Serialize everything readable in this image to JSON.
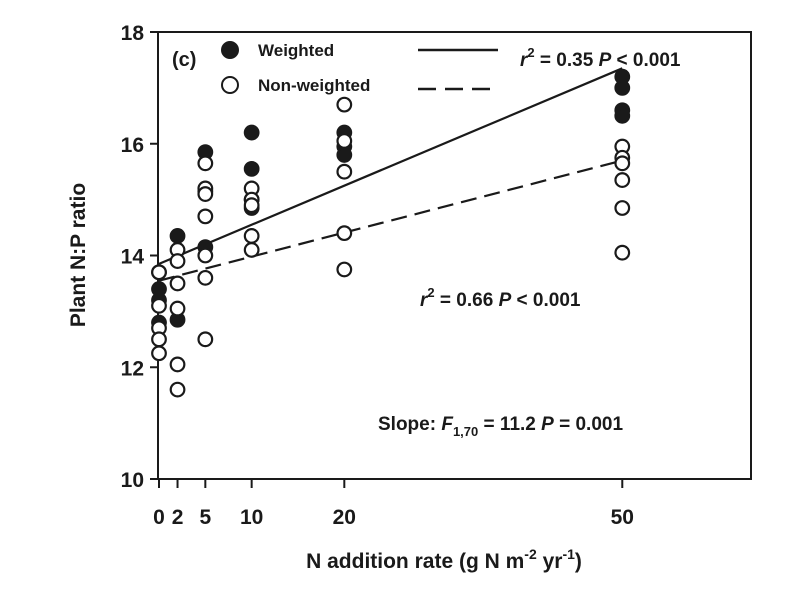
{
  "chart_data": {
    "type": "scatter",
    "panel_label": "(c)",
    "xlabel": "N addition rate (g N m-2 yr-1)",
    "ylabel": "Plant N:P ratio",
    "xlim": [
      0,
      64
    ],
    "ylim": [
      10,
      18
    ],
    "x_ticks": [
      0,
      2,
      5,
      10,
      20,
      50
    ],
    "y_ticks": [
      10,
      12,
      14,
      16,
      18
    ],
    "grid": false,
    "legend_position": "top-left",
    "series": [
      {
        "name": "Weighted",
        "marker": "filled-circle",
        "line_style": "solid",
        "points": [
          [
            0,
            13.7
          ],
          [
            0,
            13.4
          ],
          [
            0,
            13.2
          ],
          [
            0,
            12.8
          ],
          [
            2,
            14.35
          ],
          [
            2,
            12.85
          ],
          [
            5,
            15.85
          ],
          [
            5,
            15.15
          ],
          [
            5,
            14.15
          ],
          [
            10,
            16.2
          ],
          [
            10,
            15.55
          ],
          [
            10,
            15.0
          ],
          [
            10,
            14.85
          ],
          [
            20,
            16.2
          ],
          [
            20,
            15.95
          ],
          [
            20,
            15.8
          ],
          [
            50,
            17.2
          ],
          [
            50,
            17.0
          ],
          [
            50,
            16.6
          ],
          [
            50,
            16.5
          ]
        ],
        "fit": {
          "x": [
            0,
            50
          ],
          "y": [
            13.85,
            17.35
          ]
        },
        "annotation": "r2 = 0.35 P < 0.001"
      },
      {
        "name": "Non-weighted",
        "marker": "open-circle",
        "line_style": "dashed",
        "points": [
          [
            0,
            13.7
          ],
          [
            0,
            13.1
          ],
          [
            0,
            12.7
          ],
          [
            0,
            12.5
          ],
          [
            0,
            12.25
          ],
          [
            2,
            14.1
          ],
          [
            2,
            13.9
          ],
          [
            2,
            13.5
          ],
          [
            2,
            13.05
          ],
          [
            2,
            12.05
          ],
          [
            2,
            11.6
          ],
          [
            5,
            15.65
          ],
          [
            5,
            15.2
          ],
          [
            5,
            15.1
          ],
          [
            5,
            14.7
          ],
          [
            5,
            14.0
          ],
          [
            5,
            13.6
          ],
          [
            5,
            12.5
          ],
          [
            10,
            15.2
          ],
          [
            10,
            15.0
          ],
          [
            10,
            14.9
          ],
          [
            10,
            14.35
          ],
          [
            10,
            14.1
          ],
          [
            20,
            16.7
          ],
          [
            20,
            16.05
          ],
          [
            20,
            15.5
          ],
          [
            20,
            14.4
          ],
          [
            20,
            13.75
          ],
          [
            50,
            15.95
          ],
          [
            50,
            15.75
          ],
          [
            50,
            15.65
          ],
          [
            50,
            15.35
          ],
          [
            50,
            14.85
          ],
          [
            50,
            14.05
          ]
        ],
        "fit": {
          "x": [
            0,
            50
          ],
          "y": [
            13.55,
            15.7
          ]
        },
        "annotation": "r2 = 0.66 P < 0.001"
      }
    ],
    "slope_annotation": "Slope: F1,70 = 11.2 P = 0.001",
    "colors": {
      "ink": "#1a1a1a",
      "marker_fill": "#1a1a1a",
      "background": "#ffffff"
    }
  }
}
